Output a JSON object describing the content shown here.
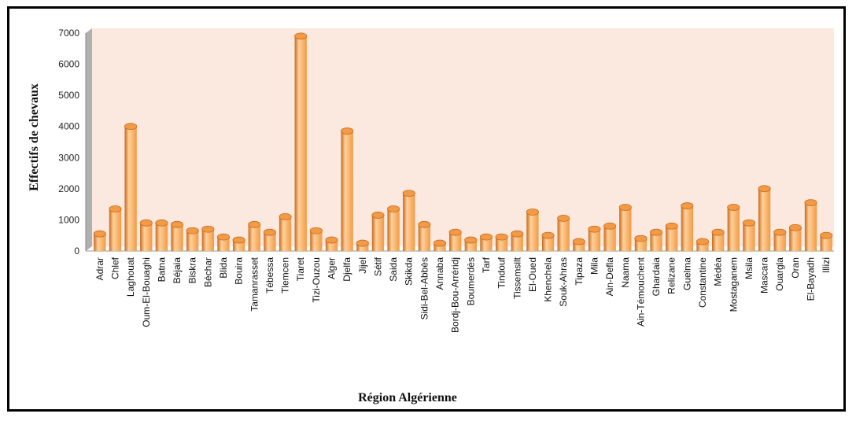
{
  "chart_data": {
    "type": "bar",
    "title": "",
    "xlabel": "Région Algérienne",
    "ylabel": "Effectifs de chevaux",
    "ylim": [
      0,
      7000
    ],
    "yticks": [
      0,
      1000,
      2000,
      3000,
      4000,
      5000,
      6000,
      7000
    ],
    "grid": false,
    "bar_style": "3d-cylinder",
    "colors": {
      "bar": "#f29a45",
      "bar_light": "#ffd19a",
      "bar_dark": "#c86a1d",
      "plot_bg": "#fbe8de",
      "wall_side": "#b0b0b0"
    },
    "categories": [
      "Adrar",
      "Chlef",
      "Laghouat",
      "Oum-El-Bouaghi",
      "Batna",
      "Béjaia",
      "Biskra",
      "Béchar",
      "Blida",
      "Bouira",
      "Tamanrasset",
      "Tébessa",
      "Tlemcen",
      "Tiaret",
      "Tizi-Ouzou",
      "Alger",
      "Djelfa",
      "Jijel",
      "Sétif",
      "Saida",
      "Skikda",
      "Sidi-Bel-Abbès",
      "Annaba",
      "Bordj-Bou-Arréridj",
      "Boumerdès",
      "Tarf",
      "Tindouf",
      "Tissemsilt",
      "El-Oued",
      "Khenchela",
      "Souk-Ahras",
      "Tipaza",
      "Mila",
      "Ain-Defla",
      "Naama",
      "Ain-Témouchent",
      "Ghardaia",
      "Relizane",
      "Guelma",
      "Constantine",
      "Médéa",
      "Mostaganem",
      "Msila",
      "Mascara",
      "Ouargla",
      "Oran",
      "El-Bayadh",
      "Illizi"
    ],
    "values": [
      400,
      1200,
      3850,
      750,
      750,
      700,
      500,
      550,
      300,
      200,
      700,
      450,
      950,
      6750,
      500,
      200,
      3700,
      100,
      1000,
      1200,
      1700,
      700,
      100,
      450,
      200,
      300,
      300,
      400,
      1100,
      350,
      900,
      150,
      550,
      650,
      1250,
      250,
      450,
      650,
      1300,
      150,
      450,
      1250,
      750,
      1850,
      450,
      600,
      1400,
      350
    ]
  }
}
